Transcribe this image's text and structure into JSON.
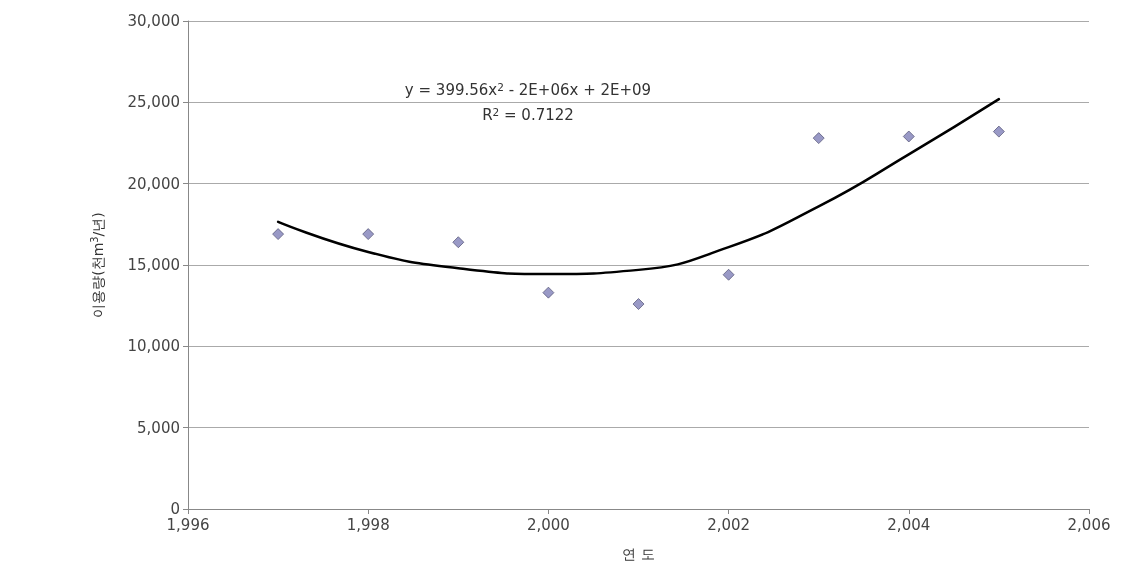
{
  "chart_data": {
    "type": "scatter",
    "xlabel": "연 도",
    "ylabel": "이용량(천m$^{3}$/년)",
    "x": [
      1997,
      1998,
      1999,
      2000,
      2001,
      2002,
      2003,
      2004,
      2005
    ],
    "series": [
      {
        "color": "#8080b8",
        "marker": "diamond",
        "values": [
          16900,
          16900,
          16400,
          13300,
          12600,
          14400,
          22800,
          22900,
          23200
        ]
      },
      {
        "type": "line",
        "color": "#000000",
        "marker": "none",
        "line_style": "solid",
        "x": [
          1997,
          1998,
          1999,
          2000,
          2001,
          2002,
          2003,
          2004,
          2005
        ],
        "values": [
          17650,
          15800,
          14800,
          14450,
          14700,
          16100,
          18600,
          21800,
          25200
        ]
      }
    ],
    "annotations": [
      "y = 399.56x$^{2}$ - 2E+06x + 2E+09",
      "R$^{2}$ = 0.7122"
    ],
    "xlim": [
      1996,
      2006
    ],
    "xticks": [
      {
        "value": 1996,
        "label": "1,996"
      },
      {
        "value": 1998,
        "label": "1,998"
      },
      {
        "value": 2000,
        "label": "2,000"
      },
      {
        "value": 2002,
        "label": "2,002"
      },
      {
        "value": 2004,
        "label": "2,004"
      },
      {
        "value": 2006,
        "label": "2,006"
      }
    ],
    "ylim": [
      0,
      30000
    ],
    "yticks": [
      0,
      {
        "value": 5000,
        "label": "5,000"
      },
      {
        "value": 10000,
        "label": "10,000"
      },
      {
        "value": 15000,
        "label": "15,000"
      },
      {
        "value": 20000,
        "label": "20,000"
      },
      {
        "value": 25000,
        "label": "25,000"
      },
      {
        "value": 30000,
        "label": "30,000"
      }
    ],
    "grid": "y"
  }
}
